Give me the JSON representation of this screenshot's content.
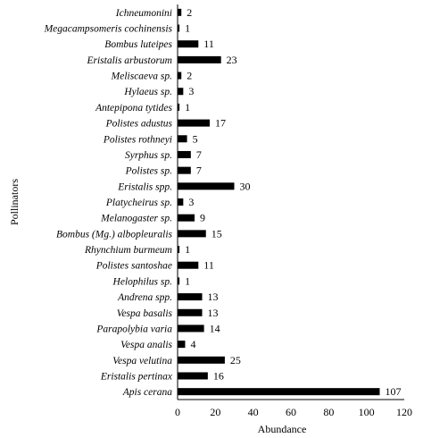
{
  "chart_data": {
    "type": "bar",
    "orientation": "horizontal",
    "categories": [
      "Ichneumonini",
      "Megacampsomeris cochinensis",
      "Bombus luteipes",
      "Eristalis arbustorum",
      "Meliscaeva sp.",
      "Hylaeus sp.",
      "Antepipona tytides",
      "Polistes adustus",
      "Polistes rothneyi",
      "Syrphus sp.",
      "Polistes sp.",
      "Eristalis spp.",
      "Platycheirus sp.",
      "Melanogaster sp.",
      "Bombus (Mg.) albopleuralis",
      "Rhynchium burmeum",
      "Polistes santoshae",
      "Helophilus sp.",
      "Andrena spp.",
      "Vespa basalis",
      "Parapolybia varia",
      "Vespa analis",
      "Vespa velutina",
      "Eristalis pertinax",
      "Apis cerana"
    ],
    "values": [
      2,
      1,
      11,
      23,
      2,
      3,
      1,
      17,
      5,
      7,
      7,
      30,
      3,
      9,
      15,
      1,
      11,
      1,
      13,
      13,
      14,
      4,
      25,
      16,
      107
    ],
    "value_labels": [
      "2",
      "1",
      "11",
      "23",
      "2",
      "3",
      "1",
      "17",
      "5",
      "7",
      "7",
      "30",
      "3",
      "9",
      "15",
      "1",
      "11",
      "1",
      "13",
      "13",
      "14",
      "4",
      "25",
      "16",
      "107"
    ],
    "title": "",
    "xlabel": "Abundance",
    "ylabel": "Pollinators",
    "xlim": [
      0,
      120
    ],
    "xticks": [
      0,
      20,
      40,
      60,
      80,
      100,
      120
    ],
    "xtick_labels": [
      "0",
      "20",
      "40",
      "60",
      "80",
      "100",
      "120"
    ],
    "grid": false,
    "bar_color": "#000000"
  }
}
